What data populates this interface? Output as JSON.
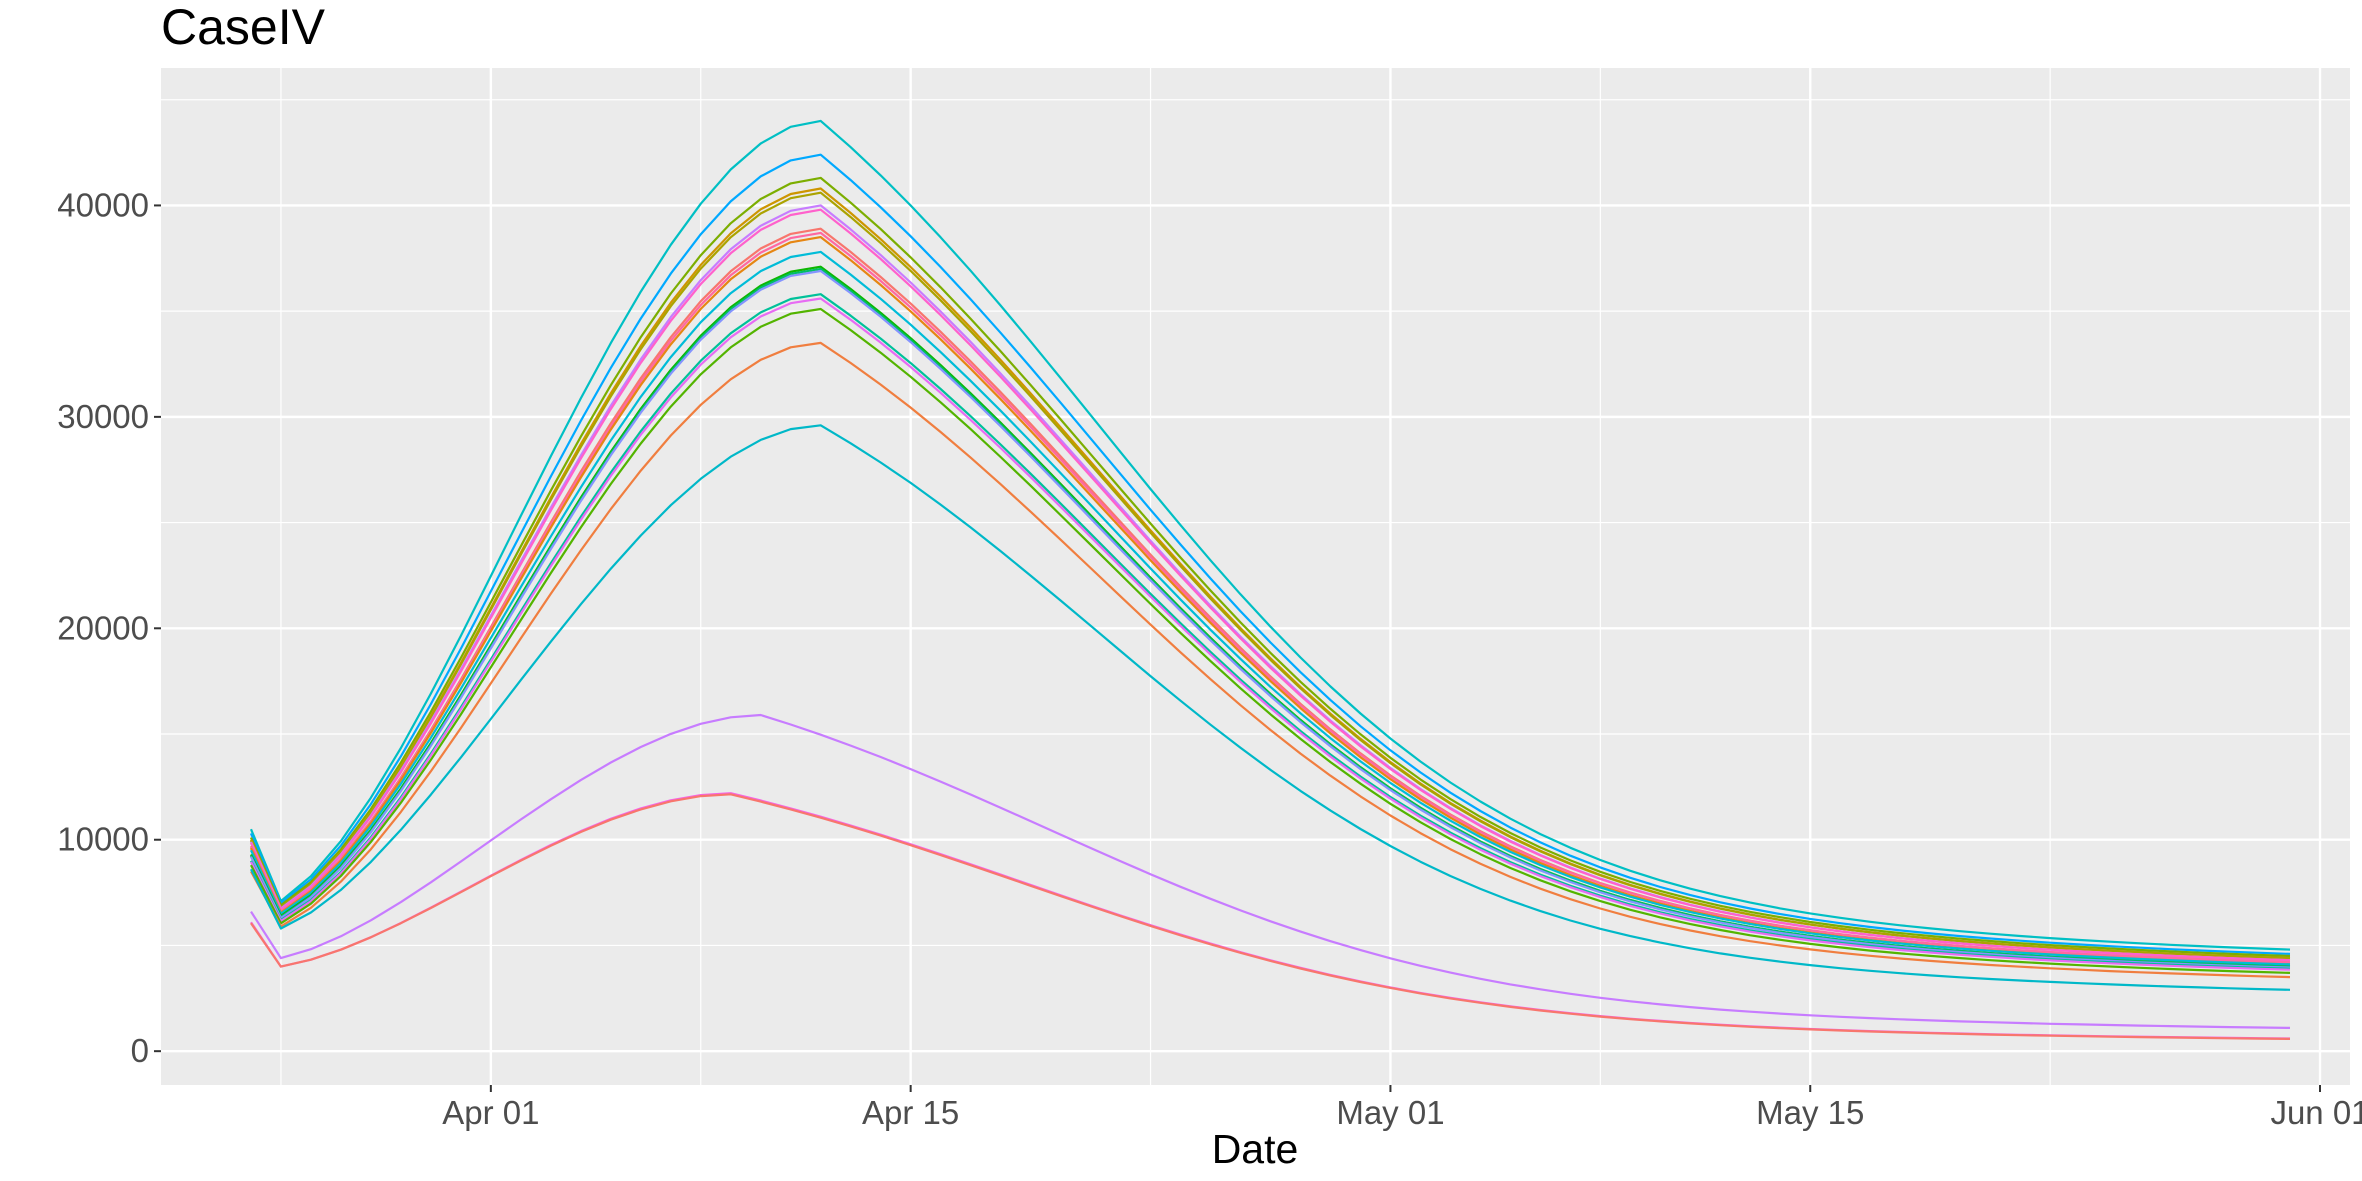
{
  "chart_data": {
    "type": "line",
    "title": "CaseIV",
    "xlabel": "Date",
    "ylabel": "",
    "x_axis": {
      "kind": "date",
      "range": [
        "2020-03-21",
        "2020-06-02"
      ],
      "ticks": [
        {
          "date": "2020-04-01",
          "label": "Apr 01"
        },
        {
          "date": "2020-04-15",
          "label": "Apr 15"
        },
        {
          "date": "2020-05-01",
          "label": "May 01"
        },
        {
          "date": "2020-05-15",
          "label": "May 15"
        },
        {
          "date": "2020-06-01",
          "label": "Jun 01"
        }
      ],
      "minor_ticks": [
        "2020-03-25",
        "2020-04-08",
        "2020-04-23",
        "2020-05-08",
        "2020-05-23"
      ]
    },
    "y_axis": {
      "range": [
        -1600,
        46500
      ],
      "ticks": [
        0,
        10000,
        20000,
        30000,
        40000
      ],
      "tick_labels": [
        "0",
        "10000",
        "20000",
        "30000",
        "40000"
      ],
      "minor_ticks": [
        5000,
        15000,
        25000,
        35000,
        45000
      ]
    },
    "grid": true,
    "legend": "none",
    "series_shape": {
      "start_date": "2020-03-24",
      "end_date": "2020-05-31"
    },
    "series": [
      {
        "color": "#00BFC4",
        "start": 10500,
        "dip": 7100,
        "peak": 44000,
        "peak_date": "2020-04-12",
        "end": 4800
      },
      {
        "color": "#00A9FF",
        "start": 10300,
        "dip": 7000,
        "peak": 42400,
        "peak_date": "2020-04-12",
        "end": 4600
      },
      {
        "color": "#7CAE00",
        "start": 10100,
        "dip": 6900,
        "peak": 41300,
        "peak_date": "2020-04-12",
        "end": 4500
      },
      {
        "color": "#CD9600",
        "start": 10000,
        "dip": 6800,
        "peak": 40800,
        "peak_date": "2020-04-12",
        "end": 4400
      },
      {
        "color": "#ABA300",
        "start": 9950,
        "dip": 6800,
        "peak": 40600,
        "peak_date": "2020-04-12",
        "end": 4400
      },
      {
        "color": "#C77CFF",
        "start": 9900,
        "dip": 6750,
        "peak": 40000,
        "peak_date": "2020-04-12",
        "end": 4300
      },
      {
        "color": "#FF61CC",
        "start": 9850,
        "dip": 6700,
        "peak": 39800,
        "peak_date": "2020-04-12",
        "end": 4300
      },
      {
        "color": "#F8766D",
        "start": 9700,
        "dip": 6600,
        "peak": 38900,
        "peak_date": "2020-04-12",
        "end": 4200
      },
      {
        "color": "#FF68A1",
        "start": 9650,
        "dip": 6600,
        "peak": 38700,
        "peak_date": "2020-04-12",
        "end": 4200
      },
      {
        "color": "#E68613",
        "start": 9600,
        "dip": 6550,
        "peak": 38500,
        "peak_date": "2020-04-12",
        "end": 4100
      },
      {
        "color": "#00BCD8",
        "start": 9500,
        "dip": 6500,
        "peak": 37800,
        "peak_date": "2020-04-12",
        "end": 4100
      },
      {
        "color": "#0CB702",
        "start": 9300,
        "dip": 6400,
        "peak": 37100,
        "peak_date": "2020-04-12",
        "end": 4000
      },
      {
        "color": "#00BE67",
        "start": 9250,
        "dip": 6350,
        "peak": 37000,
        "peak_date": "2020-04-12",
        "end": 4000
      },
      {
        "color": "#8494FF",
        "start": 9200,
        "dip": 6300,
        "peak": 36900,
        "peak_date": "2020-04-12",
        "end": 3950
      },
      {
        "color": "#00C19A",
        "start": 9000,
        "dip": 6200,
        "peak": 35800,
        "peak_date": "2020-04-12",
        "end": 3900
      },
      {
        "color": "#E76BF3",
        "start": 8950,
        "dip": 6150,
        "peak": 35600,
        "peak_date": "2020-04-12",
        "end": 3850
      },
      {
        "color": "#53B400",
        "start": 8800,
        "dip": 6050,
        "peak": 35100,
        "peak_date": "2020-04-12",
        "end": 3700
      },
      {
        "color": "#F07E3F",
        "start": 8500,
        "dip": 5900,
        "peak": 33500,
        "peak_date": "2020-04-12",
        "end": 3500
      },
      {
        "color": "#00B8C8",
        "start": 8600,
        "dip": 5800,
        "peak": 29600,
        "peak_date": "2020-04-12",
        "end": 2900
      },
      {
        "color": "#C77CFF",
        "start": 6600,
        "dip": 4400,
        "peak": 15900,
        "peak_date": "2020-04-10",
        "end": 1100
      },
      {
        "color": "#F564E3",
        "start": 6100,
        "dip": 4000,
        "peak": 12200,
        "peak_date": "2020-04-09",
        "end": 600
      },
      {
        "color": "#F8766D",
        "start": 6050,
        "dip": 4000,
        "peak": 12150,
        "peak_date": "2020-04-09",
        "end": 580
      }
    ]
  }
}
